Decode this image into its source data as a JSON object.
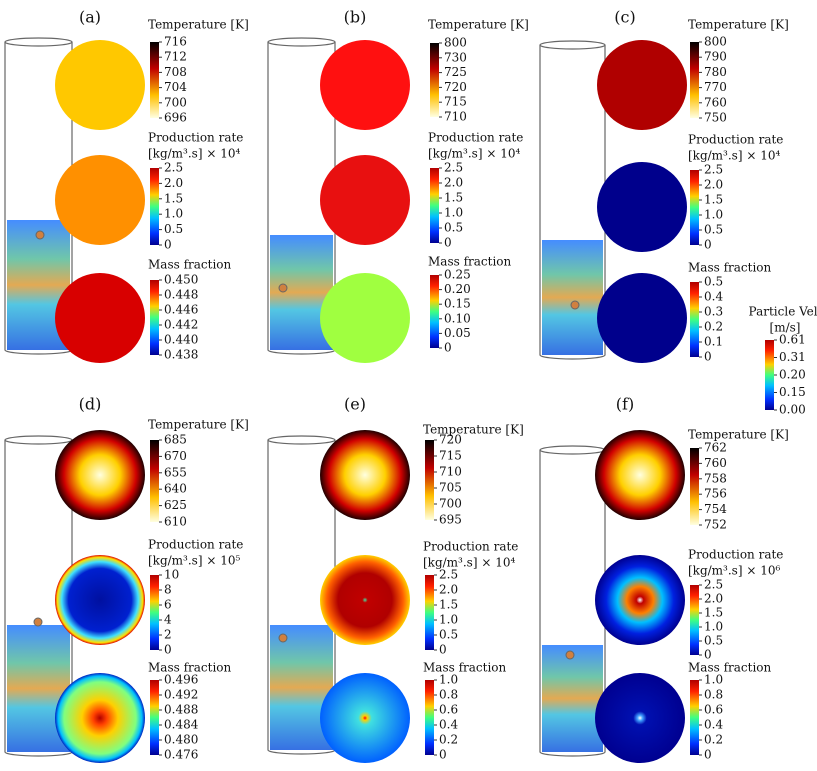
{
  "figure": {
    "panels": [
      {
        "label": "(a)",
        "bars": [
          {
            "title": [
              "Temperature [K]"
            ],
            "ticks": [
              "716",
              "712",
              "708",
              "704",
              "700",
              "696"
            ]
          },
          {
            "title": [
              "Production rate",
              "[kg/m³.s] × 10⁴"
            ],
            "ticks": [
              "2.5",
              "2.0",
              "1.5",
              "1.0",
              "0.5",
              "0"
            ]
          },
          {
            "title": [
              "Mass fraction"
            ],
            "ticks": [
              "0.450",
              "0.448",
              "0.446",
              "0.442",
              "0.440",
              "0.438"
            ]
          }
        ]
      },
      {
        "label": "(b)",
        "bars": [
          {
            "title": [
              "Temperature [K]"
            ],
            "ticks": [
              "800",
              "730",
              "725",
              "720",
              "715",
              "710"
            ]
          },
          {
            "title": [
              "Production rate",
              "[kg/m³.s] × 10⁴"
            ],
            "ticks": [
              "2.5",
              "2.0",
              "1.5",
              "1.0",
              "0.5",
              "0"
            ]
          },
          {
            "title": [
              "Mass fraction"
            ],
            "ticks": [
              "0.25",
              "0.20",
              "0.15",
              "0.10",
              "0.05",
              "0"
            ]
          }
        ]
      },
      {
        "label": "(c)",
        "bars": [
          {
            "title": [
              "Temperature [K]"
            ],
            "ticks": [
              "800",
              "790",
              "780",
              "770",
              "760",
              "750"
            ]
          },
          {
            "title": [
              "Production rate",
              "[kg/m³.s] × 10⁴"
            ],
            "ticks": [
              "2.5",
              "2.0",
              "1.5",
              "1.0",
              "0.5",
              "0"
            ]
          },
          {
            "title": [
              "Mass fraction"
            ],
            "ticks": [
              "0.5",
              "0.4",
              "0.3",
              "0.2",
              "0.1",
              "0"
            ]
          }
        ]
      },
      {
        "label": "(d)",
        "bars": [
          {
            "title": [
              "Temperature [K]"
            ],
            "ticks": [
              "685",
              "670",
              "655",
              "640",
              "625",
              "610"
            ]
          },
          {
            "title": [
              "Production rate",
              "[kg/m³.s] × 10⁵"
            ],
            "ticks": [
              "10",
              "8",
              "6",
              "4",
              "2",
              "0"
            ]
          },
          {
            "title": [
              "Mass fraction"
            ],
            "ticks": [
              "0.496",
              "0.492",
              "0.488",
              "0.484",
              "0.480",
              "0.476"
            ]
          }
        ]
      },
      {
        "label": "(e)",
        "bars": [
          {
            "title": [
              "Temperature [K]"
            ],
            "ticks": [
              "720",
              "715",
              "710",
              "705",
              "700",
              "695"
            ]
          },
          {
            "title": [
              "Production rate",
              "[kg/m³.s] × 10⁴"
            ],
            "ticks": [
              "2.5",
              "2.0",
              "1.5",
              "1.0",
              "0.5",
              "0"
            ]
          },
          {
            "title": [
              "Mass fraction"
            ],
            "ticks": [
              "1.0",
              "0.8",
              "0.6",
              "0.4",
              "0.2",
              "0"
            ]
          }
        ]
      },
      {
        "label": "(f)",
        "bars": [
          {
            "title": [
              "Temperature [K]"
            ],
            "ticks": [
              "762",
              "760",
              "758",
              "756",
              "754",
              "752"
            ]
          },
          {
            "title": [
              "Production rate",
              "[kg/m³.s] × 10⁶"
            ],
            "ticks": [
              "2.5",
              "2.0",
              "1.5",
              "1.0",
              "0.5",
              "0"
            ]
          },
          {
            "title": [
              "Mass fraction"
            ],
            "ticks": [
              "1.0",
              "0.8",
              "0.6",
              "0.4",
              "0.2",
              "0"
            ]
          }
        ]
      }
    ],
    "velocity_bar": {
      "title": [
        "Particle Vel.",
        "[m/s]"
      ],
      "ticks": [
        "0.61",
        "0.31",
        "0.20",
        "0.15",
        "0.00"
      ]
    }
  }
}
